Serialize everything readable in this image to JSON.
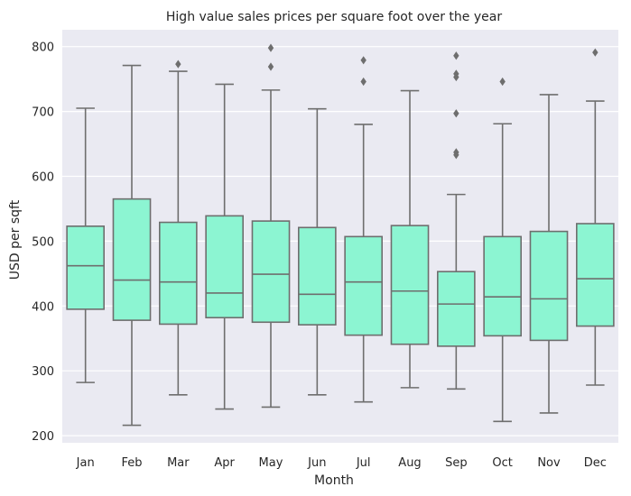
{
  "chart_data": {
    "type": "box",
    "title": "High value sales prices per square foot over the year",
    "xlabel": "Month",
    "ylabel": "USD per sqft",
    "categories": [
      "Jan",
      "Feb",
      "Mar",
      "Apr",
      "May",
      "Jun",
      "Jul",
      "Aug",
      "Sep",
      "Oct",
      "Nov",
      "Dec"
    ],
    "yticks": [
      "200",
      "300",
      "400",
      "500",
      "600",
      "700",
      "800"
    ],
    "ylim": [
      189,
      826
    ],
    "grid": true,
    "box_color": "#8cf5d2",
    "line_color": "#6e6e6e",
    "background_color": "#eaeaf2",
    "boxes": [
      {
        "month": "Jan",
        "whisker_low": 282,
        "q1": 395,
        "median": 462,
        "q3": 523,
        "whisker_high": 705,
        "outliers": []
      },
      {
        "month": "Feb",
        "whisker_low": 216,
        "q1": 378,
        "median": 440,
        "q3": 565,
        "whisker_high": 771,
        "outliers": []
      },
      {
        "month": "Mar",
        "whisker_low": 263,
        "q1": 372,
        "median": 437,
        "q3": 529,
        "whisker_high": 762,
        "outliers": [
          773
        ]
      },
      {
        "month": "Apr",
        "whisker_low": 241,
        "q1": 382,
        "median": 420,
        "q3": 539,
        "whisker_high": 742,
        "outliers": []
      },
      {
        "month": "May",
        "whisker_low": 244,
        "q1": 375,
        "median": 449,
        "q3": 531,
        "whisker_high": 733,
        "outliers": [
          769,
          798
        ]
      },
      {
        "month": "Jun",
        "whisker_low": 263,
        "q1": 371,
        "median": 418,
        "q3": 521,
        "whisker_high": 704,
        "outliers": []
      },
      {
        "month": "Jul",
        "whisker_low": 252,
        "q1": 355,
        "median": 437,
        "q3": 507,
        "whisker_high": 680,
        "outliers": [
          746,
          779
        ]
      },
      {
        "month": "Aug",
        "whisker_low": 274,
        "q1": 341,
        "median": 423,
        "q3": 524,
        "whisker_high": 732,
        "outliers": []
      },
      {
        "month": "Sep",
        "whisker_low": 272,
        "q1": 338,
        "median": 403,
        "q3": 453,
        "whisker_high": 572,
        "outliers": [
          633,
          637,
          697,
          753,
          758,
          786
        ]
      },
      {
        "month": "Oct",
        "whisker_low": 222,
        "q1": 354,
        "median": 414,
        "q3": 507,
        "whisker_high": 681,
        "outliers": [
          746
        ]
      },
      {
        "month": "Nov",
        "whisker_low": 235,
        "q1": 347,
        "median": 411,
        "q3": 515,
        "whisker_high": 726,
        "outliers": []
      },
      {
        "month": "Dec",
        "whisker_low": 278,
        "q1": 369,
        "median": 442,
        "q3": 527,
        "whisker_high": 716,
        "outliers": [
          791
        ]
      }
    ]
  }
}
